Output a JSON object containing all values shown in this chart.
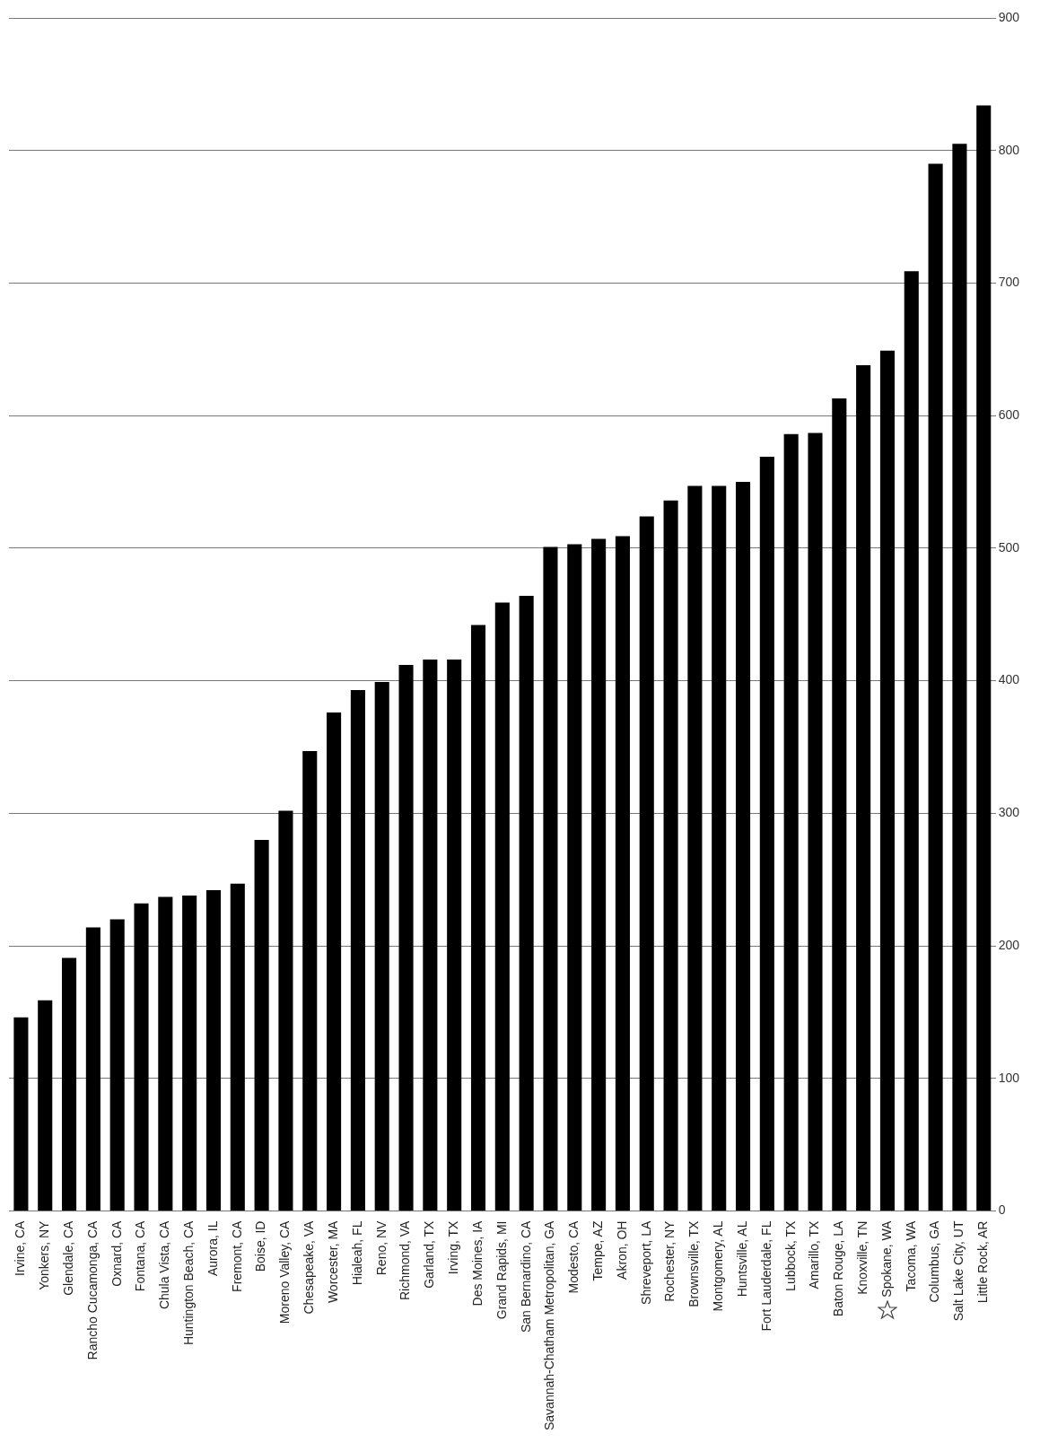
{
  "chart_data": {
    "type": "bar",
    "categories": [
      "Irvine, CA",
      "Yonkers, NY",
      "Glendale, CA",
      "Rancho Cucamonga, CA",
      "Oxnard, CA",
      "Fontana, CA",
      "Chula Vista, CA",
      "Huntington Beach, CA",
      "Aurora, IL",
      "Fremont, CA",
      "Boise, ID",
      "Moreno Valley, CA",
      "Chesapeake, VA",
      "Worcester, MA",
      "Hialeah, FL",
      "Reno, NV",
      "Richmond, VA",
      "Garland, TX",
      "Irving, TX",
      "Des Moines, IA",
      "Grand Rapids, MI",
      "San Bernardino, CA",
      "Savannah-Chatham Metropolitan, GA",
      "Modesto, CA",
      "Tempe, AZ",
      "Akron, OH",
      "Shreveport, LA",
      "Rochester, NY",
      "Brownsville, TX",
      "Montgomery, AL",
      "Huntsville, AL",
      "Fort Lauderdale, FL",
      "Lubbock, TX",
      "Amarillo, TX",
      "Baton Rouge, LA",
      "Knoxville, TN",
      "Spokane, WA",
      "Tacoma, WA",
      "Columbus, GA",
      "Salt Lake City, UT",
      "Little Rock, AR"
    ],
    "values": [
      146,
      159,
      191,
      214,
      220,
      232,
      237,
      238,
      242,
      247,
      280,
      302,
      347,
      376,
      393,
      399,
      412,
      416,
      416,
      442,
      459,
      464,
      501,
      503,
      507,
      509,
      524,
      536,
      547,
      547,
      550,
      569,
      586,
      587,
      613,
      638,
      649,
      709,
      790,
      805,
      834
    ],
    "color": "#000000",
    "ylim": [
      0,
      900
    ],
    "yticks": [
      0,
      100,
      200,
      300,
      400,
      500,
      600,
      700,
      800,
      900
    ],
    "grid": "y",
    "legend": false
  }
}
